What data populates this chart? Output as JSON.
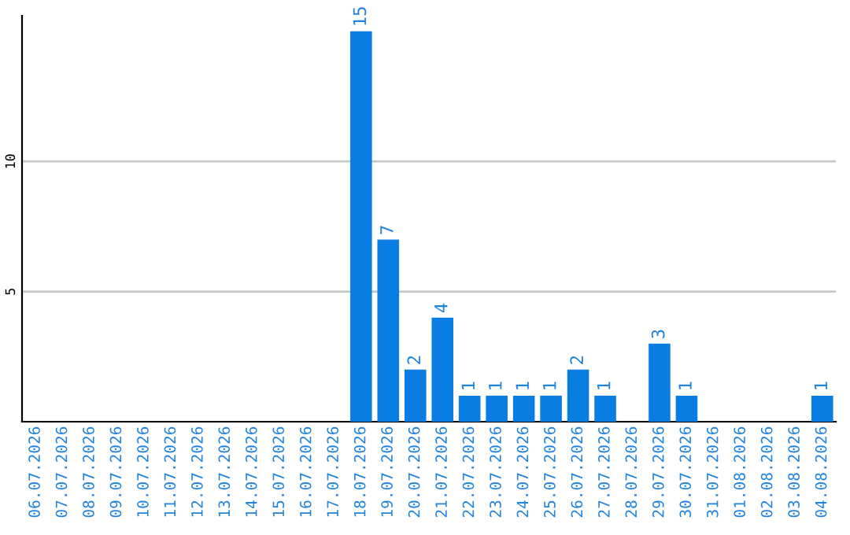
{
  "chart_data": {
    "type": "bar",
    "categories": [
      "06.07.2026",
      "07.07.2026",
      "08.07.2026",
      "09.07.2026",
      "10.07.2026",
      "11.07.2026",
      "12.07.2026",
      "13.07.2026",
      "14.07.2026",
      "15.07.2026",
      "16.07.2026",
      "17.07.2026",
      "18.07.2026",
      "19.07.2026",
      "20.07.2026",
      "21.07.2026",
      "22.07.2026",
      "23.07.2026",
      "24.07.2026",
      "25.07.2026",
      "26.07.2026",
      "27.07.2026",
      "28.07.2026",
      "29.07.2026",
      "30.07.2026",
      "31.07.2026",
      "01.08.2026",
      "02.08.2026",
      "03.08.2026",
      "04.08.2026"
    ],
    "values": [
      0,
      0,
      0,
      0,
      0,
      0,
      0,
      0,
      0,
      0,
      0,
      0,
      15,
      7,
      2,
      4,
      1,
      1,
      1,
      1,
      2,
      1,
      0,
      3,
      1,
      0,
      0,
      0,
      0,
      1
    ],
    "value_labels": [
      null,
      null,
      null,
      null,
      null,
      null,
      null,
      null,
      null,
      null,
      null,
      null,
      "15",
      "7",
      "2",
      "4",
      "1",
      "1",
      "1",
      "1",
      "2",
      "1",
      null,
      "3",
      "1",
      null,
      null,
      null,
      null,
      "1"
    ],
    "color": "#0a7de3",
    "ylim": [
      0,
      15.6
    ],
    "yticks": [
      5,
      10
    ],
    "grid": "y"
  }
}
